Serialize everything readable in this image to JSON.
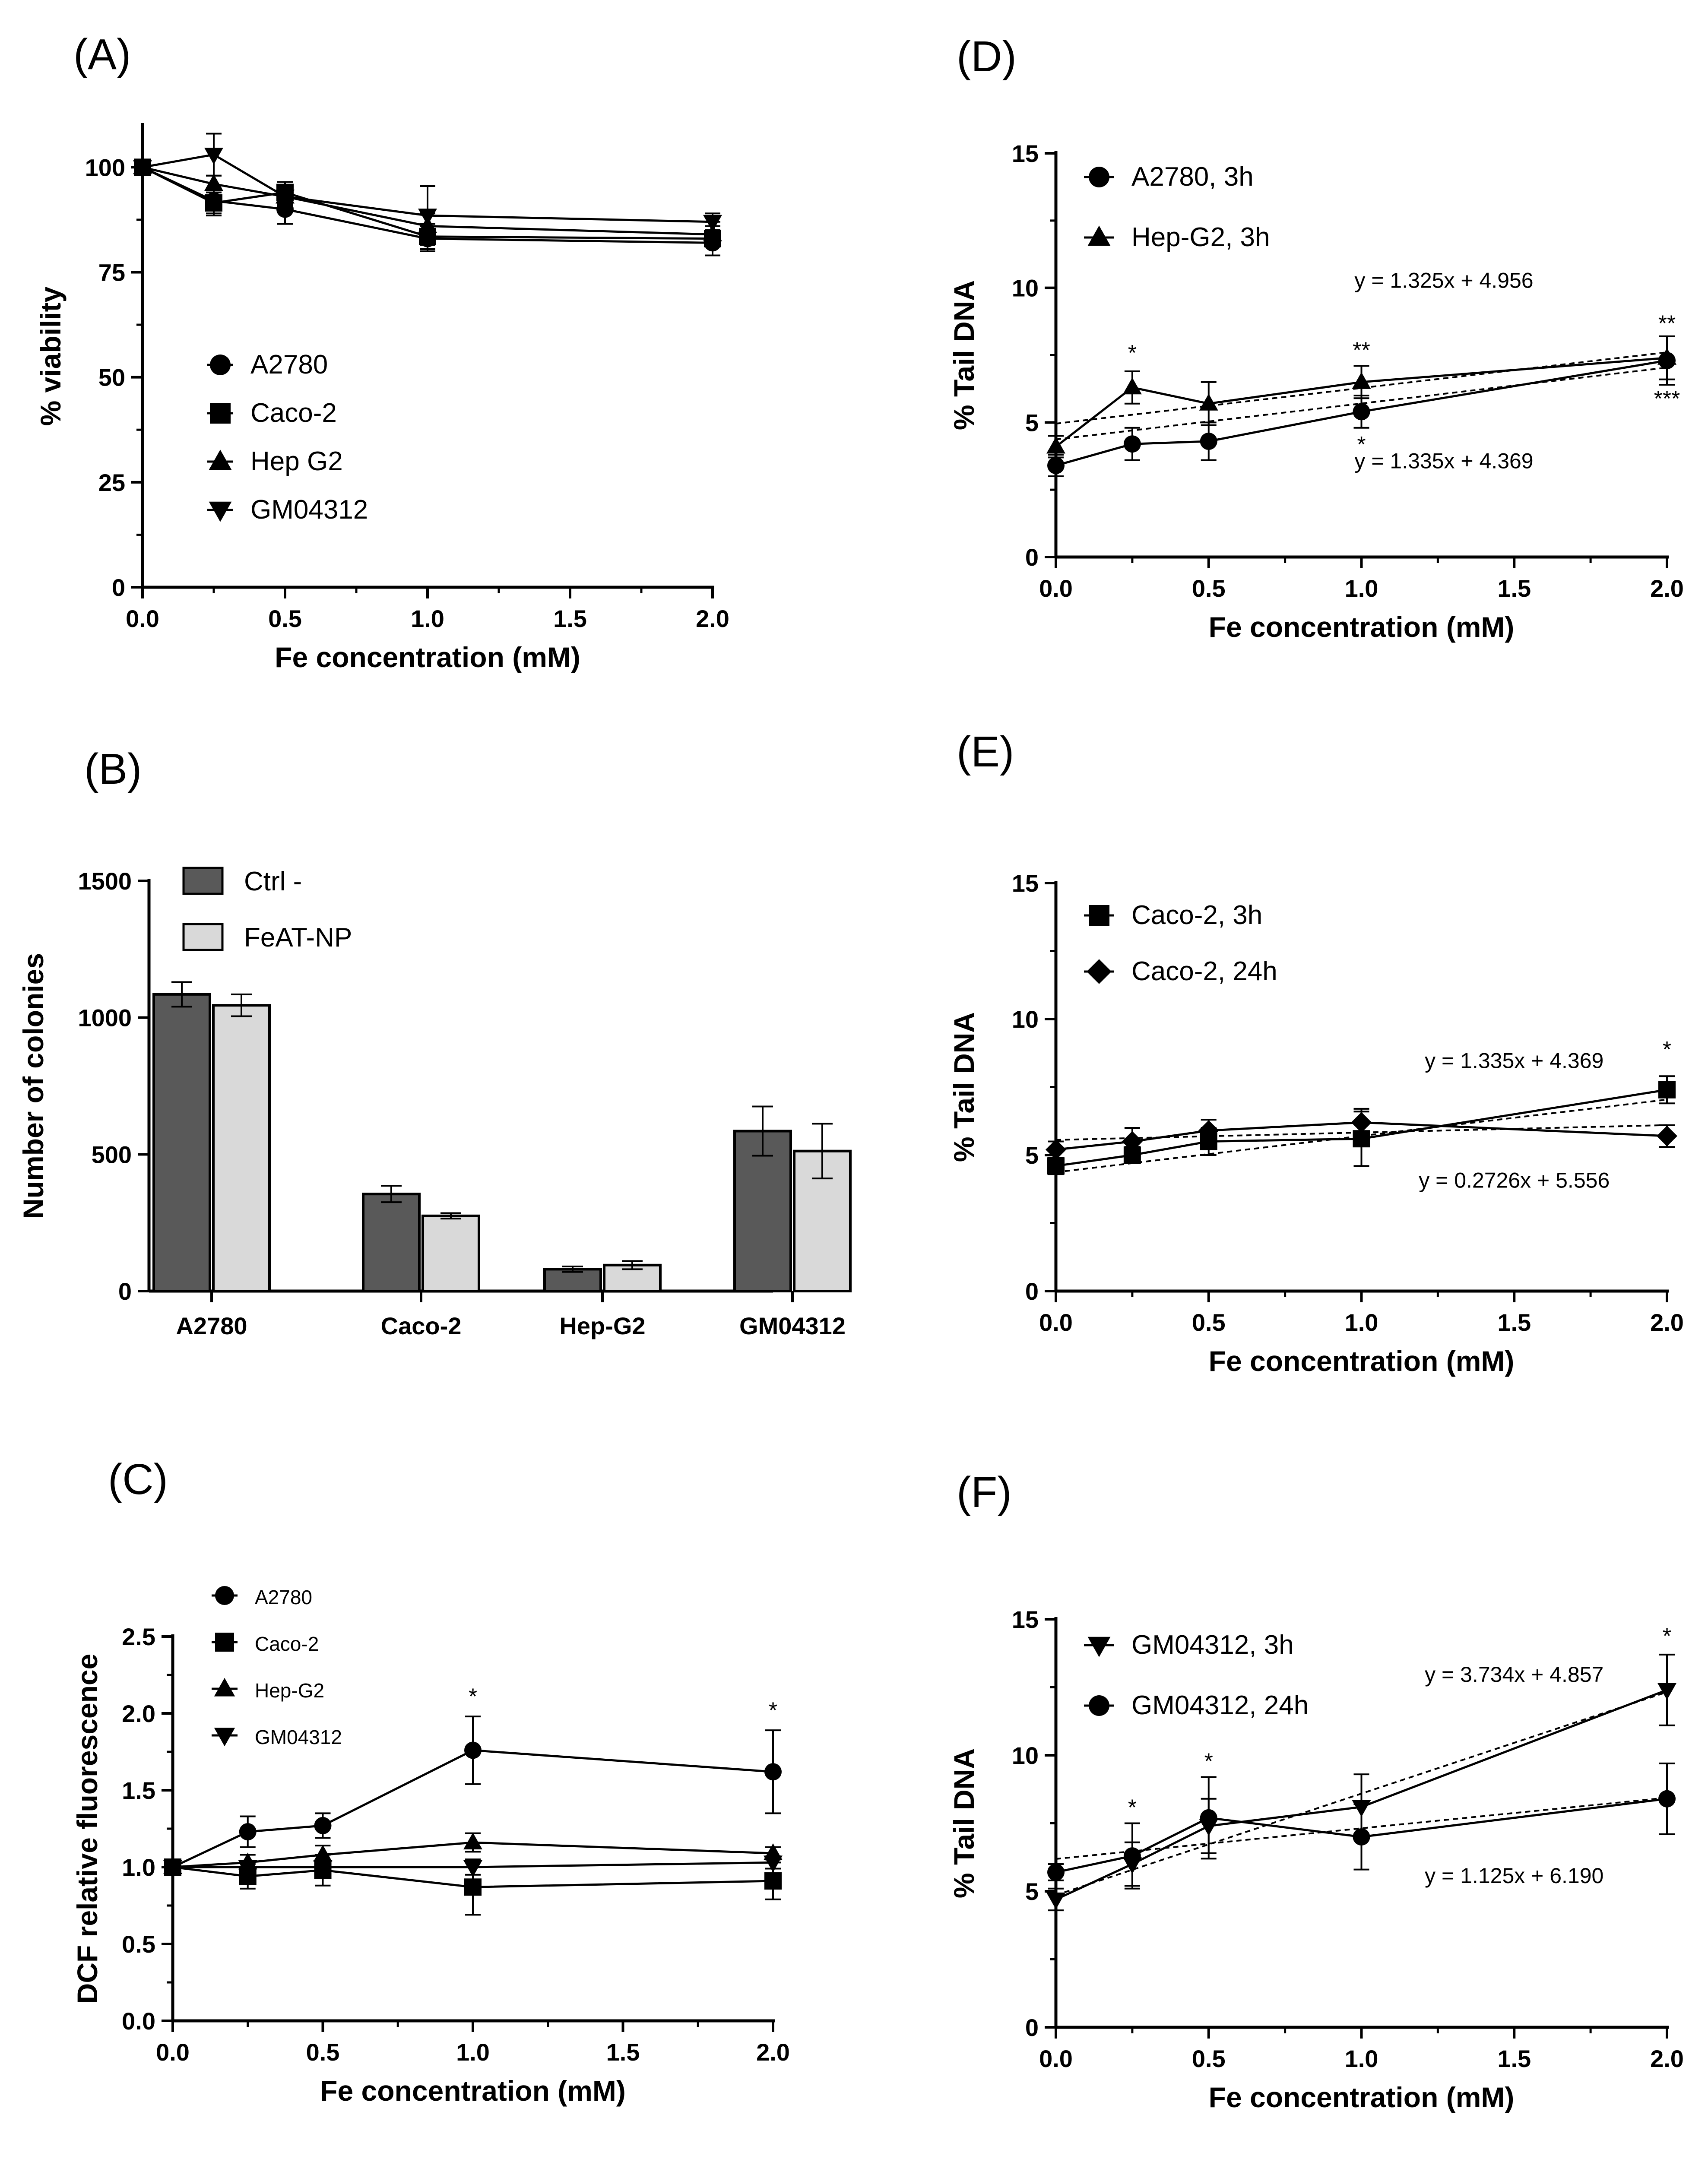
{
  "figure": {
    "panels": [
      {
        "id": "A",
        "label": "(A)"
      },
      {
        "id": "B",
        "label": "(B)"
      },
      {
        "id": "C",
        "label": "(C)"
      },
      {
        "id": "D",
        "label": "(D)"
      },
      {
        "id": "E",
        "label": "(E)"
      },
      {
        "id": "F",
        "label": "(F)"
      }
    ]
  },
  "chart_data": [
    {
      "panel": "(A)",
      "type": "line",
      "xlabel": "Fe concentration (mM)",
      "ylabel": "% viability",
      "xlim": [
        0,
        2
      ],
      "ylim": [
        0,
        110
      ],
      "xticks": [
        0,
        0.5,
        1,
        1.5,
        2
      ],
      "xtick_labels": [
        "0.0",
        "0.5",
        "1.0",
        "1.5",
        "2.0"
      ],
      "yticks": [
        0,
        25,
        50,
        75,
        100
      ],
      "ytick_labels": [
        "0",
        "25",
        "50",
        "75",
        "100"
      ],
      "x": [
        0,
        0.25,
        0.5,
        1,
        2
      ],
      "legend_position": "center-left",
      "series": [
        {
          "name": "A2780",
          "marker": "circle",
          "values": [
            100,
            92,
            90,
            83,
            82
          ],
          "errors": [
            0,
            3,
            3.5,
            3,
            3
          ]
        },
        {
          "name": "Caco-2",
          "marker": "square",
          "values": [
            100,
            91.5,
            94,
            83.5,
            83
          ],
          "errors": [
            0,
            3,
            2.5,
            3,
            4
          ]
        },
        {
          "name": "Hep G2",
          "marker": "triangle-up",
          "values": [
            100,
            96,
            93,
            86,
            84
          ],
          "errors": [
            0,
            2,
            2,
            3,
            2
          ]
        },
        {
          "name": "GM04312",
          "marker": "triangle-down",
          "values": [
            100,
            103,
            93,
            88.5,
            87
          ],
          "errors": [
            0,
            5,
            2,
            7,
            2
          ]
        }
      ]
    },
    {
      "panel": "(B)",
      "type": "bar",
      "xlabel": "",
      "ylabel": "Number of colonies",
      "ylim": [
        0,
        1500
      ],
      "yticks": [
        0,
        500,
        1000,
        1500
      ],
      "ytick_labels": [
        "0",
        "500",
        "1000",
        "1500"
      ],
      "categories": [
        "A2780",
        "Caco-2",
        "Hep-G2",
        "GM04312"
      ],
      "legend_position": "top-left",
      "series": [
        {
          "name": "Ctrl -",
          "color": "#595959",
          "values": [
            1085,
            355,
            80,
            585
          ],
          "errors": [
            45,
            30,
            10,
            90
          ]
        },
        {
          "name": "FeAT-NP",
          "color": "#d9d9d9",
          "values": [
            1045,
            275,
            95,
            512
          ],
          "errors": [
            40,
            10,
            15,
            100
          ]
        }
      ]
    },
    {
      "panel": "(C)",
      "type": "line",
      "xlabel": "Fe concentration (mM)",
      "ylabel": "DCF relative fluorescence",
      "xlim": [
        0,
        2
      ],
      "ylim": [
        0,
        2.5
      ],
      "xticks": [
        0,
        0.5,
        1,
        1.5,
        2
      ],
      "xtick_labels": [
        "0.0",
        "0.5",
        "1.0",
        "1.5",
        "2.0"
      ],
      "yticks": [
        0,
        0.5,
        1,
        1.5,
        2,
        2.5
      ],
      "ytick_labels": [
        "0.0",
        "0.5",
        "1.0",
        "1.5",
        "2.0",
        "2.5"
      ],
      "x": [
        0,
        0.25,
        0.5,
        1,
        2
      ],
      "legend_position": "top-left",
      "series": [
        {
          "name": "A2780",
          "marker": "circle",
          "values": [
            1.0,
            1.23,
            1.27,
            1.76,
            1.62
          ],
          "errors": [
            0,
            0.1,
            0.08,
            0.22,
            0.27
          ]
        },
        {
          "name": "Caco-2",
          "marker": "square",
          "values": [
            1.0,
            0.94,
            0.98,
            0.87,
            0.91
          ],
          "errors": [
            0,
            0.08,
            0.1,
            0.18,
            0.12
          ]
        },
        {
          "name": "Hep-G2",
          "marker": "triangle-up",
          "values": [
            1.0,
            1.03,
            1.08,
            1.16,
            1.09
          ],
          "errors": [
            0,
            0.05,
            0.06,
            0.06,
            0.04
          ]
        },
        {
          "name": "GM04312",
          "marker": "triangle-down",
          "values": [
            1.0,
            1.0,
            1.0,
            1.0,
            1.03
          ],
          "errors": [
            0,
            0.04,
            0.04,
            0.05,
            0.04
          ]
        }
      ],
      "annotations": [
        {
          "text": "*",
          "x": 1,
          "y": 2.06
        },
        {
          "text": "*",
          "x": 2,
          "y": 1.97
        }
      ]
    },
    {
      "panel": "(D)",
      "type": "line",
      "xlabel": "Fe concentration (mM)",
      "ylabel": "% Tail DNA",
      "xlim": [
        0,
        2
      ],
      "ylim": [
        0,
        15
      ],
      "xticks": [
        0,
        0.5,
        1,
        1.5,
        2
      ],
      "xtick_labels": [
        "0.0",
        "0.5",
        "1.0",
        "1.5",
        "2.0"
      ],
      "yticks": [
        0,
        5,
        10,
        15
      ],
      "ytick_labels": [
        "0",
        "5",
        "10",
        "15"
      ],
      "x": [
        0,
        0.25,
        0.5,
        1,
        2
      ],
      "legend_position": "top-left",
      "series": [
        {
          "name": "A2780, 3h",
          "marker": "circle",
          "values": [
            3.4,
            4.2,
            4.3,
            5.4,
            7.3
          ],
          "errors": [
            0.4,
            0.6,
            0.7,
            0.6,
            0.9
          ],
          "fit": {
            "slope": 1.335,
            "intercept": 4.369
          }
        },
        {
          "name": "Hep-G2, 3h",
          "marker": "triangle-up",
          "values": [
            4.1,
            6.3,
            5.7,
            6.5,
            7.4
          ],
          "errors": [
            0.4,
            0.6,
            0.8,
            0.6,
            0.8
          ],
          "fit": {
            "slope": 1.325,
            "intercept": 4.956
          }
        }
      ],
      "annotations": [
        {
          "text": "y = 1.325x + 4.956",
          "x": 1.27,
          "y": 10.0
        },
        {
          "text": "y = 1.335x + 4.369",
          "x": 1.27,
          "y": 3.3
        },
        {
          "text": "*",
          "x": 0.25,
          "y": 7.3
        },
        {
          "text": "**",
          "x": 1,
          "y": 7.4
        },
        {
          "text": "*",
          "x": 1,
          "y": 3.9
        },
        {
          "text": "**",
          "x": 2,
          "y": 8.4
        },
        {
          "text": "***",
          "x": 2,
          "y": 5.6
        }
      ]
    },
    {
      "panel": "(E)",
      "type": "line",
      "xlabel": "Fe concentration (mM)",
      "ylabel": "% Tail DNA",
      "xlim": [
        0,
        2
      ],
      "ylim": [
        0,
        15
      ],
      "xticks": [
        0,
        0.5,
        1,
        1.5,
        2
      ],
      "xtick_labels": [
        "0.0",
        "0.5",
        "1.0",
        "1.5",
        "2.0"
      ],
      "yticks": [
        0,
        5,
        10,
        15
      ],
      "ytick_labels": [
        "0",
        "5",
        "10",
        "15"
      ],
      "x": [
        0,
        0.25,
        0.5,
        1,
        2
      ],
      "legend_position": "top-left",
      "series": [
        {
          "name": "Caco-2, 3h",
          "marker": "square",
          "values": [
            4.6,
            5.0,
            5.5,
            5.6,
            7.4
          ],
          "errors": [
            0.3,
            0.3,
            0.5,
            1.0,
            0.5
          ],
          "fit": {
            "slope": 1.335,
            "intercept": 4.369
          }
        },
        {
          "name": "Caco-2, 24h",
          "marker": "diamond",
          "values": [
            5.2,
            5.5,
            5.9,
            6.2,
            5.7
          ],
          "errors": [
            0.3,
            0.5,
            0.4,
            0.5,
            0.4
          ],
          "fit": {
            "slope": 0.2726,
            "intercept": 5.556
          }
        }
      ],
      "annotations": [
        {
          "text": "y = 1.335x + 4.369",
          "x": 1.5,
          "y": 8.2
        },
        {
          "text": "y = 0.2726x + 5.556",
          "x": 1.5,
          "y": 3.8
        },
        {
          "text": "*",
          "x": 2,
          "y": 8.6
        }
      ]
    },
    {
      "panel": "(F)",
      "type": "line",
      "xlabel": "Fe concentration (mM)",
      "ylabel": "% Tail DNA",
      "xlim": [
        0,
        2
      ],
      "ylim": [
        0,
        15
      ],
      "xticks": [
        0,
        0.5,
        1,
        1.5,
        2
      ],
      "xtick_labels": [
        "0.0",
        "0.5",
        "1.0",
        "1.5",
        "2.0"
      ],
      "yticks": [
        0,
        5,
        10,
        15
      ],
      "ytick_labels": [
        "0",
        "5",
        "10",
        "15"
      ],
      "x": [
        0,
        0.25,
        0.5,
        1,
        2
      ],
      "legend_position": "top-left",
      "series": [
        {
          "name": "GM04312, 3h",
          "marker": "triangle-down",
          "values": [
            4.7,
            6.0,
            7.4,
            8.1,
            12.4
          ],
          "errors": [
            0.4,
            0.8,
            1.0,
            1.2,
            1.3
          ],
          "fit": {
            "slope": 3.734,
            "intercept": 4.857
          }
        },
        {
          "name": "GM04312, 24h",
          "marker": "circle",
          "values": [
            5.7,
            6.3,
            7.7,
            7.0,
            8.4
          ],
          "errors": [
            0.3,
            1.2,
            1.5,
            1.2,
            1.3
          ],
          "fit": {
            "slope": 1.125,
            "intercept": 6.19
          }
        }
      ],
      "annotations": [
        {
          "text": "y = 3.734x + 4.857",
          "x": 1.5,
          "y": 12.7
        },
        {
          "text": "y = 1.125x + 6.190",
          "x": 1.5,
          "y": 5.3
        },
        {
          "text": "*",
          "x": 0.25,
          "y": 7.8
        },
        {
          "text": "*",
          "x": 0.5,
          "y": 9.5
        },
        {
          "text": "*",
          "x": 2,
          "y": 14.1
        }
      ]
    }
  ]
}
